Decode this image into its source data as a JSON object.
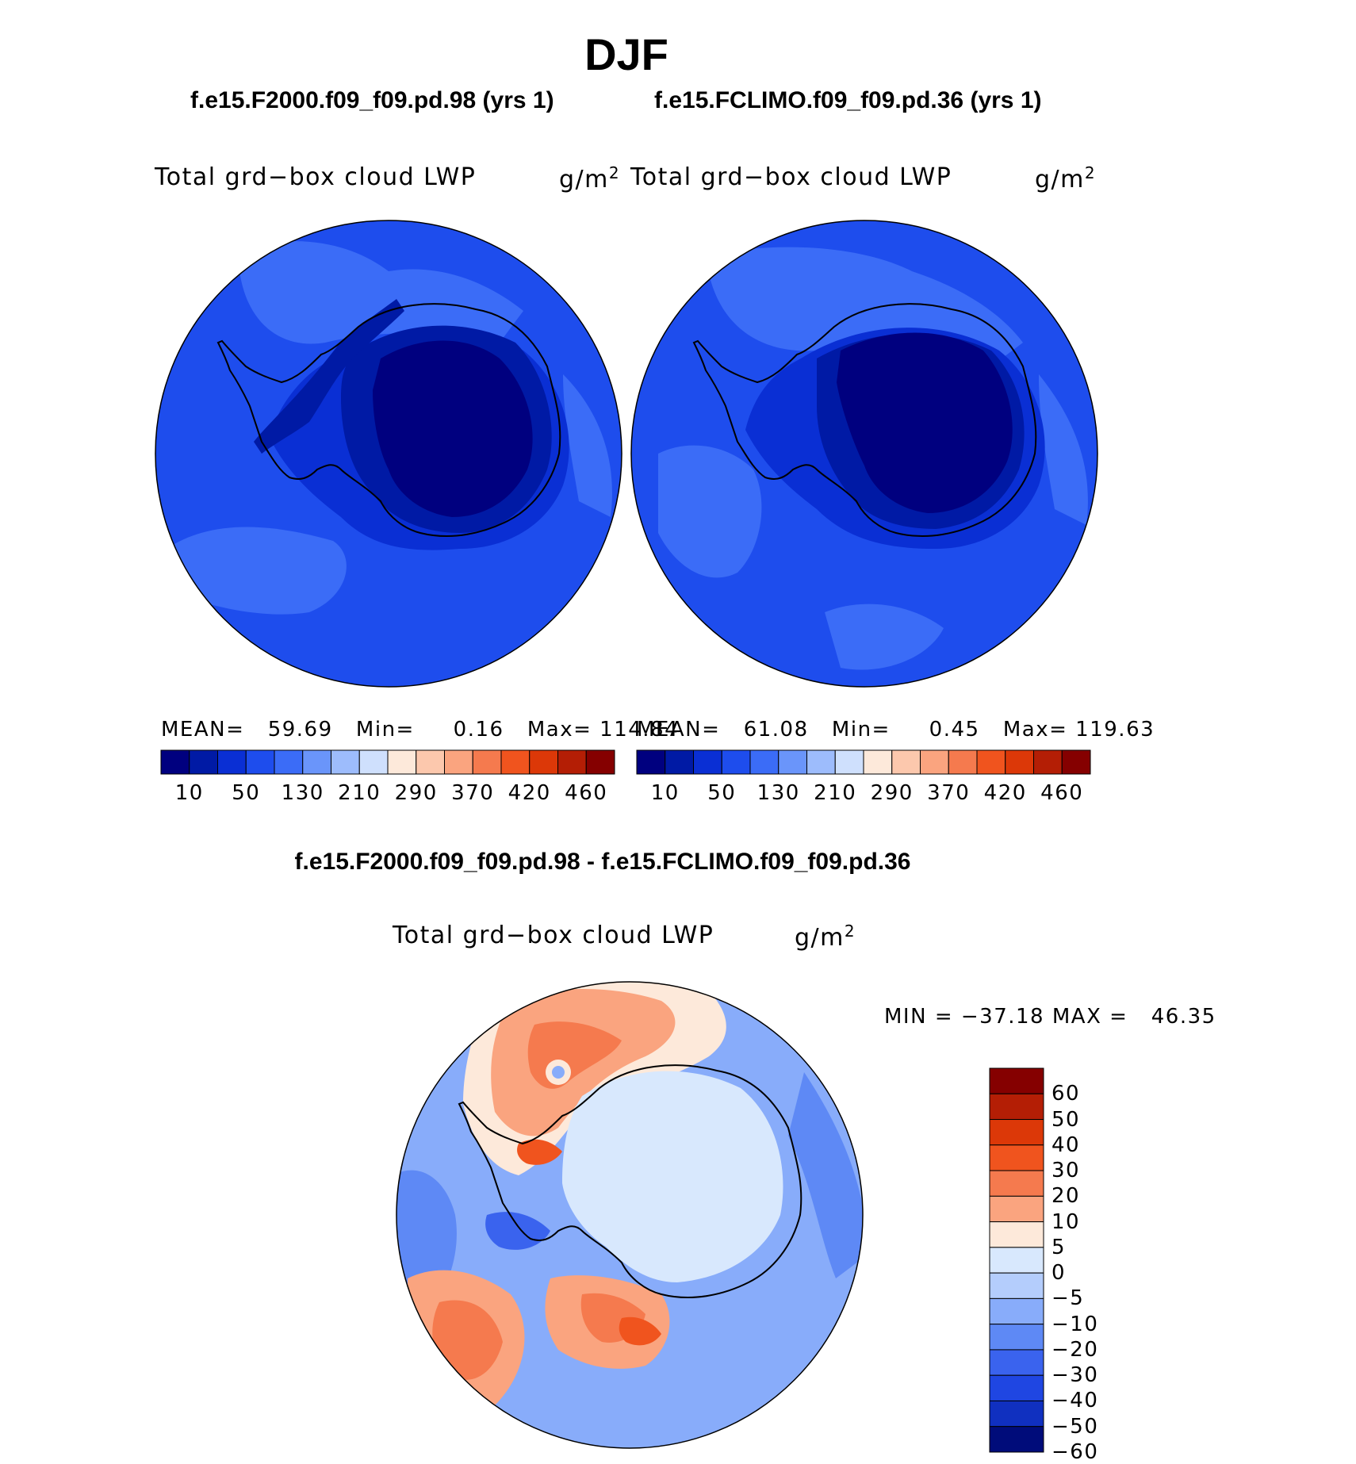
{
  "title": "DJF",
  "panels": [
    {
      "case": "f.e15.F2000.f09_f09.pd.98 (yrs 1)",
      "variable": "Total grd−box cloud LWP",
      "unit_base": "g/m",
      "unit_exp": "2",
      "stats": {
        "mean_label": "MEAN=",
        "mean": "59.69",
        "min_label": "Min=",
        "min": "0.16",
        "max_label": "Max=",
        "max": "114.84"
      }
    },
    {
      "case": "f.e15.FCLIMO.f09_f09.pd.36 (yrs 1)",
      "variable": "Total grd−box cloud LWP",
      "unit_base": "g/m",
      "unit_exp": "2",
      "stats": {
        "mean_label": "MEAN=",
        "mean": "61.08",
        "min_label": "Min=",
        "min": "0.45",
        "max_label": "Max=",
        "max": "119.63"
      }
    }
  ],
  "colorbar": {
    "colors": [
      "#00007f",
      "#001aa5",
      "#0a2fd4",
      "#1e4ded",
      "#3b6cf7",
      "#6a95fa",
      "#9dbcfc",
      "#cfe0fd",
      "#fde9da",
      "#fcc8ad",
      "#faa47f",
      "#f57a4e",
      "#f0541e",
      "#dc3808",
      "#b41e05",
      "#850000"
    ],
    "tick_labels": [
      "10",
      "50",
      "130",
      "210",
      "290",
      "370",
      "420",
      "460"
    ]
  },
  "difference": {
    "title": "f.e15.F2000.f09_f09.pd.98 - f.e15.FCLIMO.f09_f09.pd.36",
    "variable": "Total grd−box cloud LWP",
    "unit_base": "g/m",
    "unit_exp": "2",
    "min_label": "MIN =",
    "min": "−37.18",
    "max_label": "MAX =",
    "max": "46.35",
    "colorbar": {
      "colors": [
        "#850000",
        "#b41e05",
        "#dc3808",
        "#f0541e",
        "#f57a4e",
        "#faa47f",
        "#fde9da",
        "#d8e8fd",
        "#b4cdfc",
        "#88acfa",
        "#5e89f5",
        "#3a63ee",
        "#1f46e2",
        "#1030c0",
        "#000c7a"
      ],
      "tick_labels": [
        "60",
        "50",
        "40",
        "30",
        "20",
        "10",
        "5",
        "0",
        "−5",
        "−10",
        "−20",
        "−30",
        "−40",
        "−50",
        "−60"
      ]
    }
  }
}
